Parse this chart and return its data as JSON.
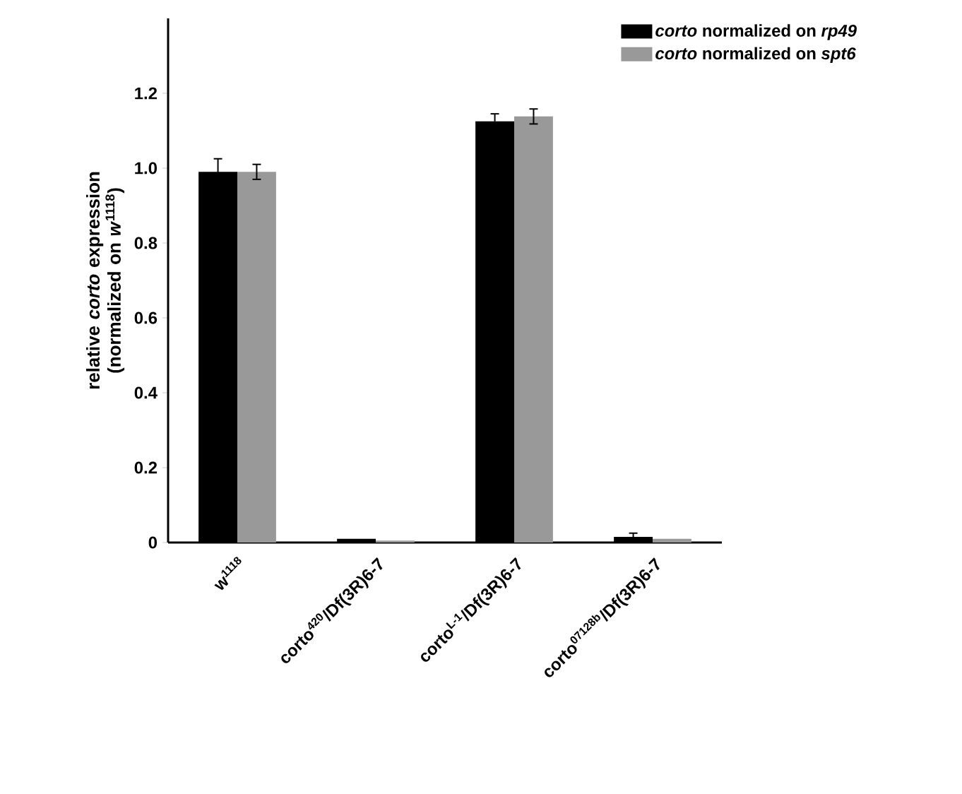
{
  "chart_data": {
    "type": "bar",
    "ylabel": "relative *corto* expression (normalized on *w*$^{1118}$)",
    "categories": [
      "w$^{1118}$",
      "corto$^{420}$/Df(3R)6-7",
      "corto$^{L-1}$/Df(3R)6-7",
      "corto$^{07128b}$/Df(3R)6-7"
    ],
    "series": [
      {
        "name": "*corto* normalized on *rp49*",
        "color": "#000000",
        "values": [
          0.99,
          0.01,
          1.125,
          0.015
        ],
        "errors": [
          0.035,
          null,
          0.02,
          0.01
        ]
      },
      {
        "name": "*corto* normalized on *spt6*",
        "color": "#999999",
        "values": [
          0.99,
          0.005,
          1.138,
          0.01
        ],
        "errors": [
          0.02,
          null,
          0.02,
          null
        ]
      }
    ],
    "ylim": [
      0,
      1.4
    ],
    "yticks": [
      0,
      {
        "value": 0.2,
        "label": "0.2"
      },
      {
        "value": 0.4,
        "label": "0.4"
      },
      {
        "value": 0.6,
        "label": "0.6"
      },
      {
        "value": 0.8,
        "label": "0.8"
      },
      {
        "value": 1.0,
        "label": "1.0"
      },
      {
        "value": 1.2,
        "label": "1.2"
      }
    ],
    "legend": "top right",
    "grid": false
  }
}
